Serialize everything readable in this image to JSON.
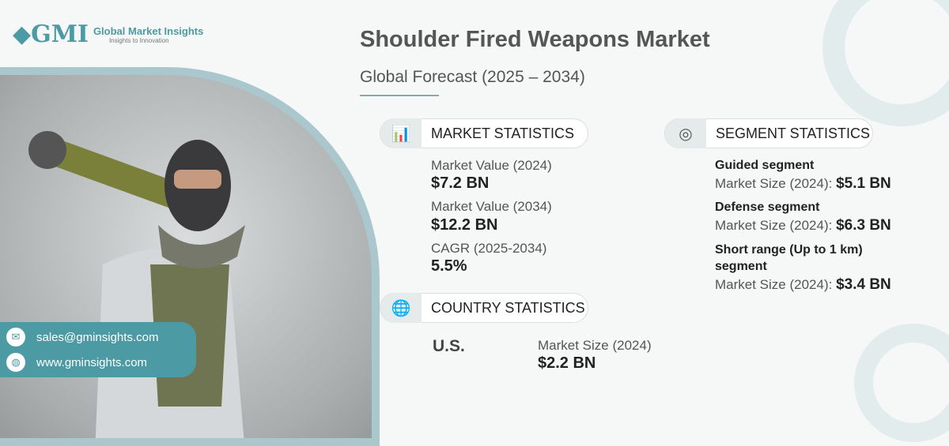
{
  "brand": {
    "name": "Global Market Insights",
    "tagline": "Insights to Innovation",
    "logo": "GMI"
  },
  "header": {
    "title": "Shoulder Fired Weapons Market",
    "subtitle": "Global Forecast (2025 – 2034)"
  },
  "market_statistics": {
    "heading": "MARKET STATISTICS",
    "items": [
      {
        "label": "Market Value (2024)",
        "value": "$7.2 BN"
      },
      {
        "label": "Market Value (2034)",
        "value": "$12.2 BN"
      },
      {
        "label": "CAGR (2025-2034)",
        "value": "5.5%"
      }
    ]
  },
  "country_statistics": {
    "heading": "COUNTRY STATISTICS",
    "country": "U.S.",
    "label": "Market Size (2024)",
    "value": "$2.2 BN"
  },
  "segment_statistics": {
    "heading": "SEGMENT STATISTICS",
    "items": [
      {
        "name": "Guided segment",
        "label": "Market Size (2024):",
        "value": "$5.1 BN"
      },
      {
        "name": "Defense segment",
        "label": "Market Size (2024):",
        "value": "$6.3 BN"
      },
      {
        "name": "Short range (Up to 1 km) segment",
        "label": "Market Size (2024):",
        "value": "$3.4 BN"
      }
    ]
  },
  "contact": {
    "email": "sales@gminsights.com",
    "website": "www.gminsights.com"
  },
  "colors": {
    "accent": "#4c9aa4",
    "text": "#555555"
  }
}
